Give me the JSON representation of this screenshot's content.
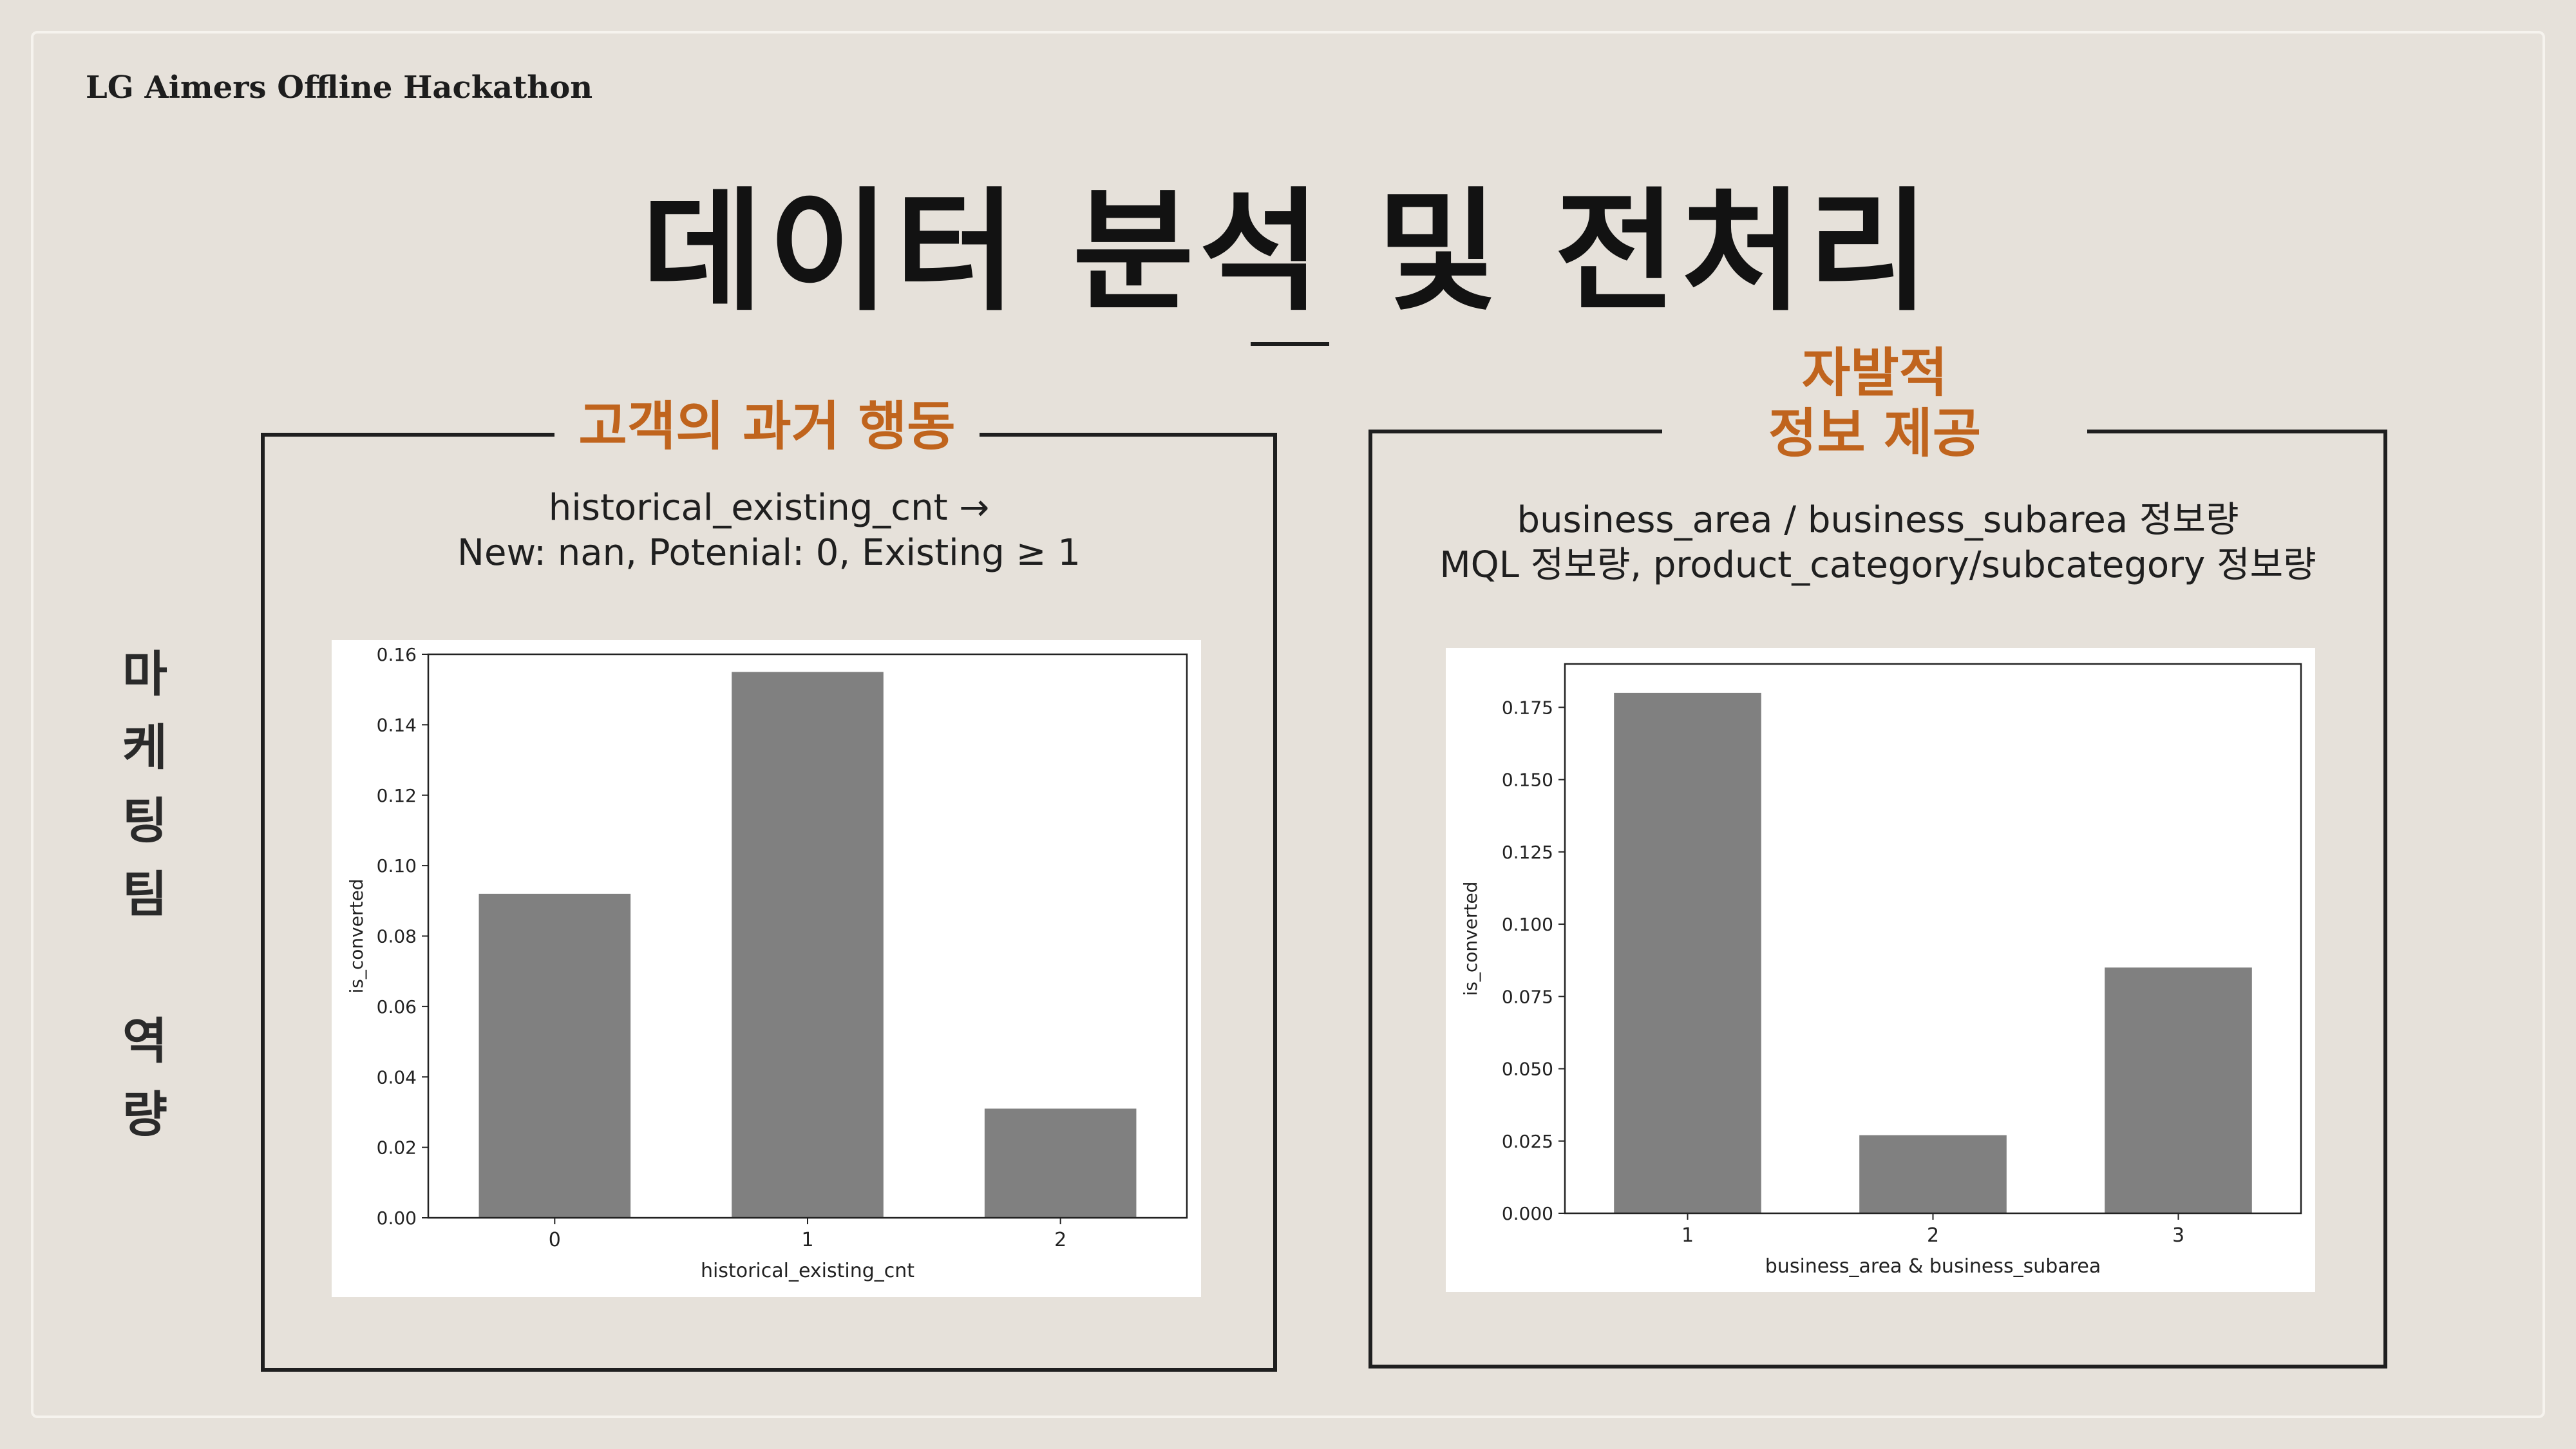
{
  "brand": "LG Aimers Offline Hackathon",
  "title": "데이터 분석 및 전처리",
  "side_label": [
    "마",
    "케",
    "팅",
    "팀",
    "",
    "역",
    "량"
  ],
  "panels": {
    "left": {
      "heading": "고객의 과거 행동",
      "desc": [
        "historical_existing_cnt →",
        "New: nan, Potenial: 0, Existing ≥ 1"
      ]
    },
    "right": {
      "heading": [
        "자발적",
        "정보 제공"
      ],
      "desc": [
        "business_area / business_subarea 정보량",
        "MQL 정보량, product_category/subcategory 정보량"
      ]
    }
  },
  "chart_data": [
    {
      "type": "bar",
      "categories": [
        "0",
        "1",
        "2"
      ],
      "values": [
        0.092,
        0.155,
        0.031
      ],
      "xlabel": "historical_existing_cnt",
      "ylabel": "is_converted",
      "ylim": [
        0,
        0.16
      ],
      "yticks": [
        "0.00",
        "0.02",
        "0.04",
        "0.06",
        "0.08",
        "0.10",
        "0.12",
        "0.14",
        "0.16"
      ],
      "grid": false,
      "bar_color": "#808080"
    },
    {
      "type": "bar",
      "categories": [
        "1",
        "2",
        "3"
      ],
      "values": [
        0.18,
        0.027,
        0.085
      ],
      "xlabel": "business_area & business_subarea",
      "ylabel": "is_converted",
      "ylim": [
        0,
        0.19
      ],
      "yticks": [
        "0.000",
        "0.025",
        "0.050",
        "0.075",
        "0.100",
        "0.125",
        "0.150",
        "0.175"
      ],
      "grid": false,
      "bar_color": "#808080"
    }
  ]
}
